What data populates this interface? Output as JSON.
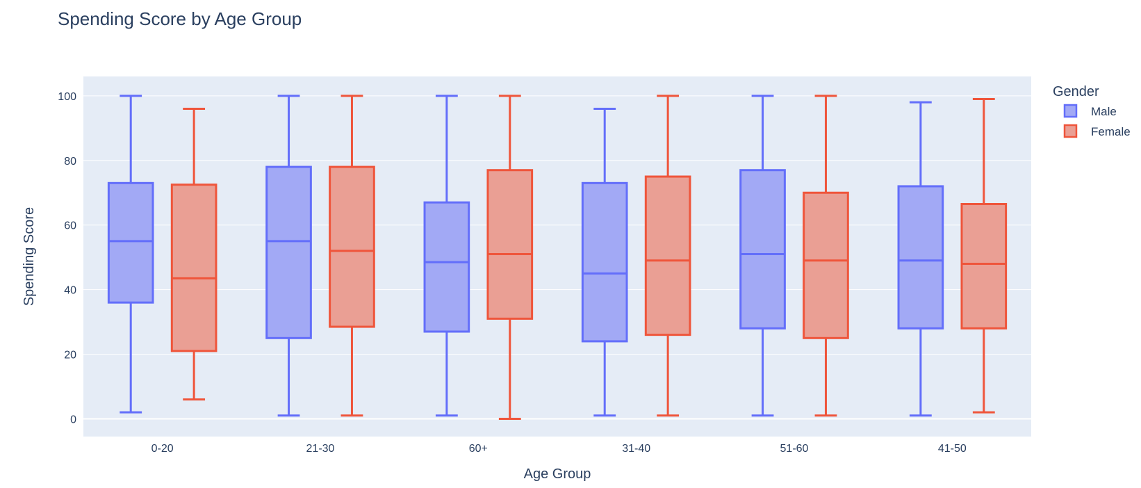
{
  "chart_data": {
    "type": "box",
    "title": "Spending Score by Age Group",
    "xlabel": "Age Group",
    "ylabel": "Spending Score",
    "ylim": [
      -5.5,
      106
    ],
    "yticks": [
      0,
      20,
      40,
      60,
      80,
      100
    ],
    "categories": [
      "0-20",
      "21-30",
      "60+",
      "31-40",
      "51-60",
      "41-50"
    ],
    "legend": {
      "title": "Gender",
      "position": "top-right"
    },
    "series": [
      {
        "name": "Male",
        "color": "#636efa",
        "fill": "#a2a9f5",
        "boxes": [
          {
            "min": 2,
            "q1": 36,
            "median": 55,
            "q3": 73,
            "max": 100
          },
          {
            "min": 1,
            "q1": 25,
            "median": 55,
            "q3": 78,
            "max": 100
          },
          {
            "min": 1,
            "q1": 27,
            "median": 48.5,
            "q3": 67,
            "max": 100
          },
          {
            "min": 1,
            "q1": 24,
            "median": 45,
            "q3": 73,
            "max": 96
          },
          {
            "min": 1,
            "q1": 28,
            "median": 51,
            "q3": 77,
            "max": 100
          },
          {
            "min": 1,
            "q1": 28,
            "median": 49,
            "q3": 72,
            "max": 98
          }
        ]
      },
      {
        "name": "Female",
        "color": "#ef553b",
        "fill": "#ea9f94",
        "boxes": [
          {
            "min": 6,
            "q1": 21,
            "median": 43.5,
            "q3": 72.5,
            "max": 96
          },
          {
            "min": 1,
            "q1": 28.5,
            "median": 52,
            "q3": 78,
            "max": 100
          },
          {
            "min": 0,
            "q1": 31,
            "median": 51,
            "q3": 77,
            "max": 100
          },
          {
            "min": 1,
            "q1": 26,
            "median": 49,
            "q3": 75,
            "max": 100
          },
          {
            "min": 1,
            "q1": 25,
            "median": 49,
            "q3": 70,
            "max": 100
          },
          {
            "min": 2,
            "q1": 28,
            "median": 48,
            "q3": 66.5,
            "max": 99
          }
        ]
      }
    ]
  }
}
